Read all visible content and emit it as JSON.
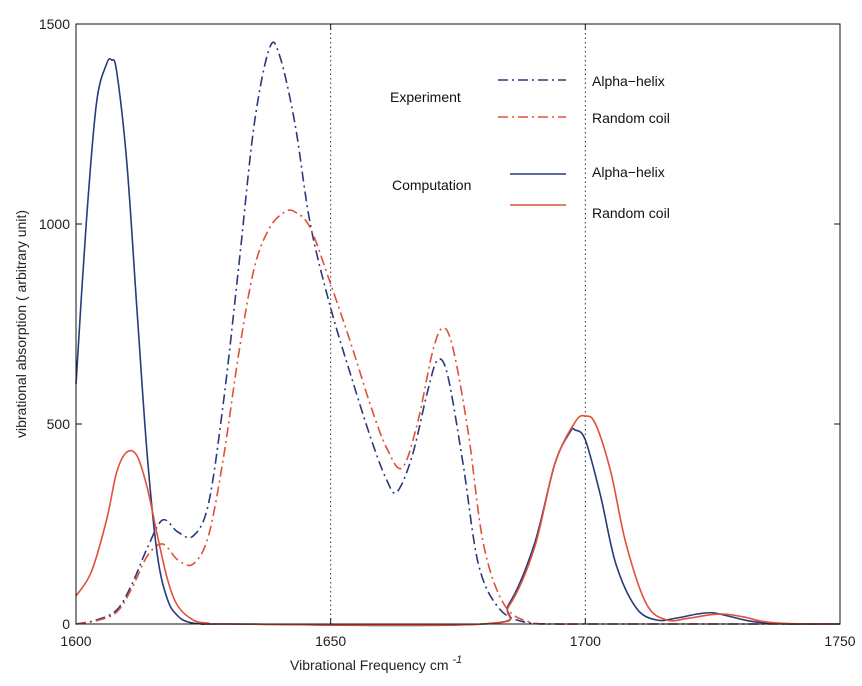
{
  "chart_data": {
    "type": "line",
    "xlabel": "Vibrational Frequency cm",
    "xlabel_sup": "-1",
    "ylabel": "vibrational absorption ( arbitrary unit)",
    "xlim": [
      1600,
      1750
    ],
    "ylim": [
      0,
      1500
    ],
    "xticks": [
      1600,
      1650,
      1700,
      1750
    ],
    "yticks": [
      0,
      500,
      1000,
      1500
    ],
    "xtick_labels": [
      "1600",
      "1650",
      "1700",
      "1750"
    ],
    "ytick_labels": [
      "0",
      "500",
      "1000",
      "1500"
    ],
    "vlines": [
      1650,
      1700
    ],
    "grid": false,
    "legend_position": "top-right",
    "legend": {
      "groups": [
        {
          "label": "Experiment",
          "entries": [
            {
              "label": "Alpha−helix",
              "color": "#2a3a7a",
              "style": "dashdot"
            },
            {
              "label": "Random coil",
              "color": "#e0503a",
              "style": "dashdot"
            }
          ]
        },
        {
          "label": "Computation",
          "entries": [
            {
              "label": "Alpha−helix",
              "color": "#2a3a7a",
              "style": "solid"
            },
            {
              "label": "Random coil",
              "color": "#e0503a",
              "style": "solid"
            }
          ]
        }
      ]
    },
    "series": [
      {
        "color": "#2a3a7a",
        "style": "dashdot",
        "x": [
          1600,
          1604,
          1608,
          1611,
          1614,
          1617,
          1620,
          1623,
          1626,
          1629,
          1632,
          1635,
          1638,
          1640,
          1643,
          1646,
          1650,
          1654,
          1658,
          1661,
          1663,
          1666,
          1669,
          1671,
          1673,
          1676,
          1679,
          1683,
          1688,
          1695,
          1700,
          1750
        ],
        "y": [
          0,
          10,
          35,
          100,
          190,
          260,
          230,
          220,
          300,
          560,
          900,
          1250,
          1440,
          1420,
          1250,
          1000,
          790,
          620,
          460,
          360,
          330,
          420,
          580,
          660,
          620,
          400,
          150,
          40,
          5,
          0,
          0,
          0
        ]
      },
      {
        "color": "#e0503a",
        "style": "dashdot",
        "x": [
          1600,
          1604,
          1608,
          1611,
          1614,
          1617,
          1620,
          1623,
          1626,
          1629,
          1632,
          1635,
          1638,
          1641,
          1643,
          1646,
          1650,
          1654,
          1658,
          1661,
          1664,
          1667,
          1670,
          1672,
          1674,
          1677,
          1680,
          1684,
          1689,
          1695,
          1700,
          1750
        ],
        "y": [
          0,
          8,
          30,
          90,
          170,
          200,
          160,
          150,
          220,
          420,
          680,
          890,
          990,
          1030,
          1030,
          990,
          850,
          700,
          540,
          440,
          390,
          500,
          680,
          740,
          690,
          480,
          200,
          50,
          5,
          0,
          0,
          0
        ]
      },
      {
        "color": "#2a3a7a",
        "style": "solid",
        "x": [
          1600,
          1602,
          1604,
          1606,
          1607,
          1608,
          1610,
          1612,
          1614,
          1616,
          1618,
          1620,
          1622,
          1625,
          1630,
          1680,
          1685,
          1690,
          1694,
          1697,
          1698,
          1700,
          1703,
          1706,
          1710,
          1714,
          1718,
          1722,
          1725,
          1728,
          1732,
          1736,
          1740,
          1750
        ],
        "y": [
          600,
          1000,
          1300,
          1400,
          1410,
          1380,
          1150,
          780,
          420,
          170,
          60,
          20,
          5,
          0,
          0,
          0,
          50,
          200,
          400,
          480,
          485,
          460,
          320,
          150,
          40,
          10,
          15,
          25,
          28,
          20,
          8,
          2,
          0,
          0
        ]
      },
      {
        "color": "#e0503a",
        "style": "solid",
        "x": [
          1600,
          1603,
          1606,
          1608,
          1610,
          1612,
          1614,
          1616,
          1618,
          1620,
          1623,
          1626,
          1630,
          1680,
          1685,
          1690,
          1694,
          1698,
          1700,
          1702,
          1705,
          1708,
          1712,
          1716,
          1720,
          1724,
          1727,
          1731,
          1735,
          1740,
          1750
        ],
        "y": [
          70,
          130,
          260,
          380,
          430,
          420,
          340,
          220,
          110,
          45,
          10,
          2,
          0,
          0,
          45,
          190,
          400,
          505,
          520,
          500,
          380,
          200,
          50,
          10,
          14,
          22,
          25,
          18,
          6,
          1,
          0
        ]
      }
    ]
  }
}
